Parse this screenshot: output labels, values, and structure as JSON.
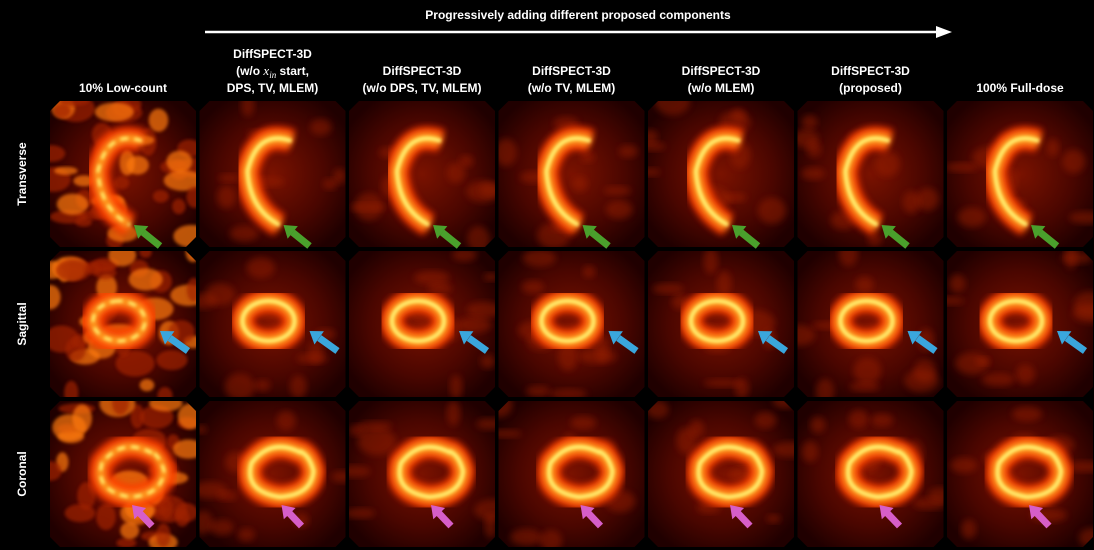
{
  "header": {
    "title": "Progressively adding different proposed components"
  },
  "columns": [
    {
      "lines": [
        "10% Low-count"
      ]
    },
    {
      "lines": [
        "DiffSPECT-3D",
        {
          "pre": "(w/o ",
          "var": "x",
          "sub": "in",
          "post": " start,"
        },
        "DPS, TV, MLEM)"
      ]
    },
    {
      "lines": [
        "DiffSPECT-3D",
        "(w/o DPS, TV, MLEM)"
      ]
    },
    {
      "lines": [
        "DiffSPECT-3D",
        "(w/o TV, MLEM)"
      ]
    },
    {
      "lines": [
        "DiffSPECT-3D",
        "(w/o MLEM)"
      ]
    },
    {
      "lines": [
        "DiffSPECT-3D",
        "(proposed)"
      ]
    },
    {
      "lines": [
        "100% Full-dose"
      ]
    }
  ],
  "rows": [
    "Transverse",
    "Sagittal",
    "Coronal"
  ]
}
